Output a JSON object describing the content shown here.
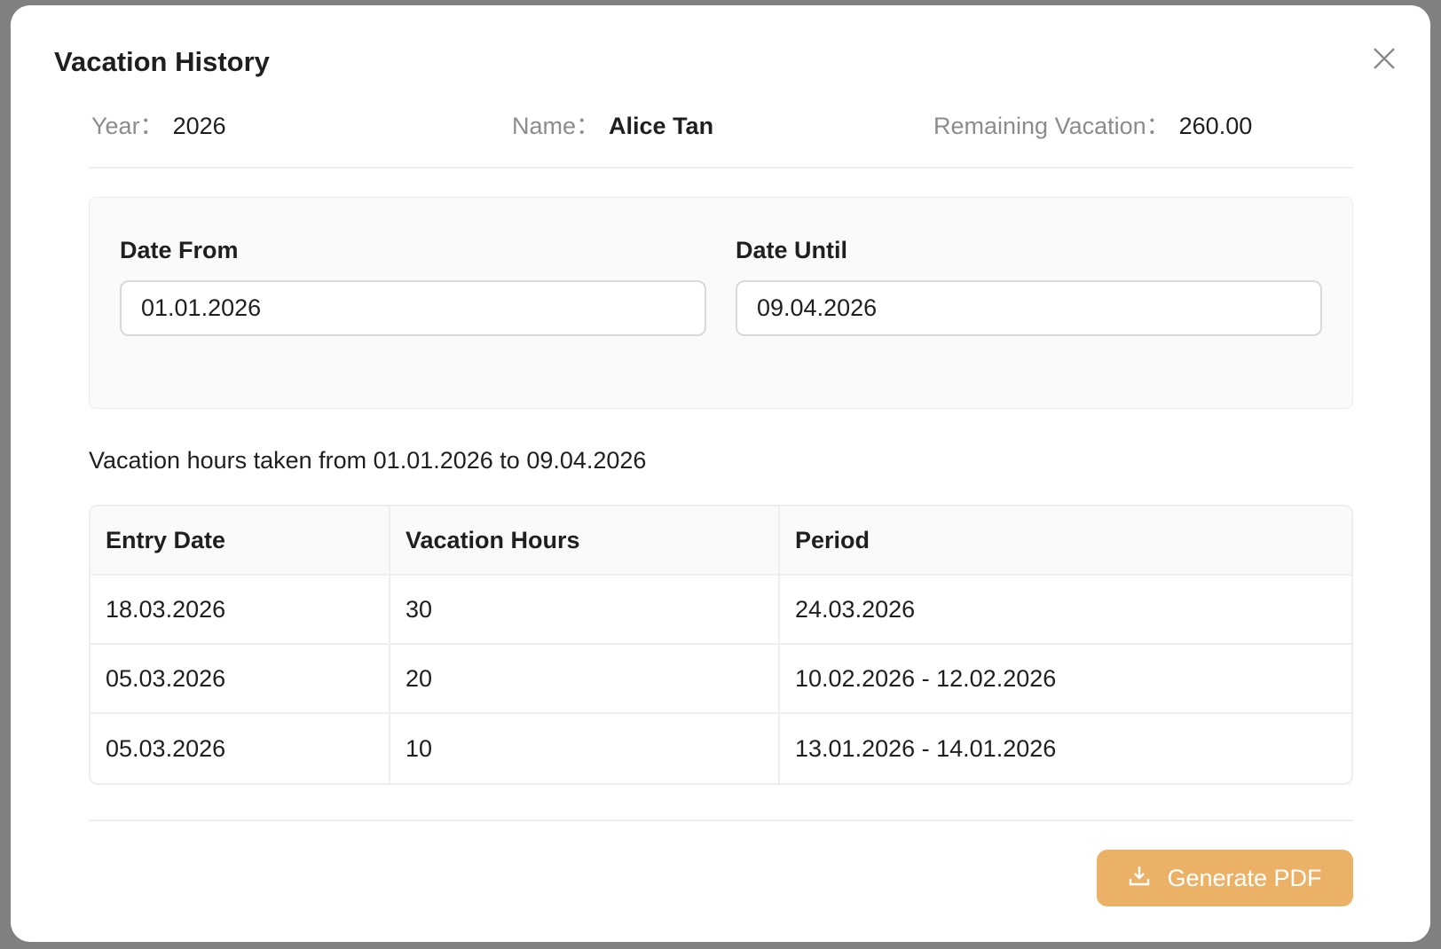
{
  "modal": {
    "title": "Vacation History",
    "close_icon": "close-icon"
  },
  "info": {
    "year_label": "Year：",
    "year": "2026",
    "name_label": "Name：",
    "name": "Alice Tan",
    "remaining_label": "Remaining Vacation：",
    "remaining": "260.00"
  },
  "filter": {
    "date_from_label": "Date From",
    "date_from": "01.01.2026",
    "date_until_label": "Date Until",
    "date_until": "09.04.2026"
  },
  "summary": "Vacation hours taken from 01.01.2026 to 09.04.2026",
  "table": {
    "headers": [
      "Entry Date",
      "Vacation Hours",
      "Period"
    ],
    "rows": [
      [
        "18.03.2026",
        "30",
        "24.03.2026"
      ],
      [
        "05.03.2026",
        "20",
        "10.02.2026 - 12.02.2026"
      ],
      [
        "05.03.2026",
        "10",
        "13.01.2026 - 14.01.2026"
      ]
    ]
  },
  "footer": {
    "generate_pdf_label": "Generate PDF",
    "button_color": "#ebb267",
    "icon": "download-icon"
  }
}
